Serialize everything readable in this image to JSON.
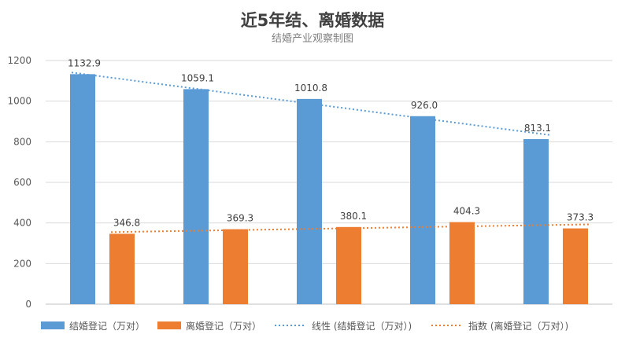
{
  "chart_data": {
    "type": "bar",
    "title": "近5年结、离婚数据",
    "subtitle": "结婚产业观察制图",
    "xlabel": "",
    "ylabel": "",
    "categories": [
      "",
      "",
      "",
      "",
      ""
    ],
    "ylim": [
      0,
      1200
    ],
    "yticks": [
      0,
      200,
      400,
      600,
      800,
      1000,
      1200
    ],
    "grid": true,
    "legend_position": "bottom",
    "series": [
      {
        "name": "结婚登记（万对）",
        "color": "#5B9BD5",
        "values": [
          1132.9,
          1059.1,
          1010.8,
          926.0,
          813.1
        ]
      },
      {
        "name": "离婚登记（万对）",
        "color": "#ED7D31",
        "values": [
          346.8,
          369.3,
          380.1,
          404.3,
          373.3
        ]
      }
    ],
    "data_labels": [
      [
        "1132.9",
        "1059.1",
        "1010.8",
        "926.0",
        "813.1"
      ],
      [
        "346.8",
        "369.3",
        "380.1",
        "404.3",
        "373.3"
      ]
    ],
    "trendlines": [
      {
        "name": "线性 (结婚登记（万对）)",
        "type": "linear",
        "series_index": 0,
        "color": "#5B9BD5",
        "start": 1141,
        "end": 833
      },
      {
        "name": "指数 (离婚登记（万对）)",
        "type": "exponential",
        "series_index": 1,
        "color": "#ED7D31",
        "start": 355,
        "end": 393
      }
    ]
  }
}
